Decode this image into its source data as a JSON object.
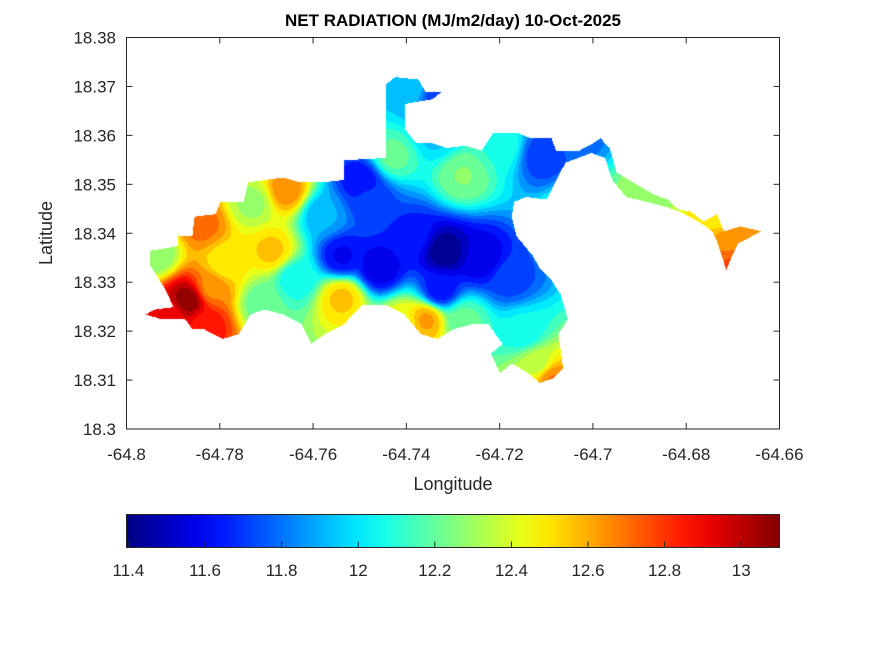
{
  "chart_data": {
    "type": "heatmap",
    "subtype": "filled-contour-map",
    "title": "NET RADIATION (MJ/m2/day) 10-Oct-2025",
    "xlabel": "Longitude",
    "ylabel": "Latitude",
    "xlim": [
      -64.8,
      -64.66
    ],
    "ylim": [
      18.3,
      18.38
    ],
    "xticks": [
      -64.8,
      -64.78,
      -64.76,
      -64.74,
      -64.72,
      -64.7,
      -64.68,
      -64.66
    ],
    "xtick_labels": [
      "-64.8",
      "-64.78",
      "-64.76",
      "-64.74",
      "-64.72",
      "-64.7",
      "-64.68",
      "-64.66"
    ],
    "yticks": [
      18.3,
      18.31,
      18.32,
      18.33,
      18.34,
      18.35,
      18.36,
      18.37,
      18.38
    ],
    "ytick_labels": [
      "18.3",
      "18.31",
      "18.32",
      "18.33",
      "18.34",
      "18.35",
      "18.36",
      "18.37",
      "18.38"
    ],
    "grid": false,
    "colormap": "jet",
    "colorbar": {
      "orientation": "horizontal",
      "placement": "bottom",
      "clim": [
        11.395,
        13.1
      ],
      "ticks": [
        11.4,
        11.6,
        11.8,
        12,
        12.2,
        12.4,
        12.6,
        12.8,
        13
      ],
      "tick_labels": [
        "11.4",
        "11.6",
        "11.8",
        "12",
        "12.2",
        "12.4",
        "12.6",
        "12.8",
        "13"
      ]
    },
    "field_background_value": 12.15,
    "field_samples": [
      {
        "lon": -64.787,
        "lat": 18.3265,
        "value": 13.08
      },
      {
        "lon": -64.791,
        "lat": 18.3235,
        "value": 12.9
      },
      {
        "lon": -64.783,
        "lat": 18.3215,
        "value": 12.85
      },
      {
        "lon": -64.782,
        "lat": 18.329,
        "value": 12.65
      },
      {
        "lon": -64.784,
        "lat": 18.342,
        "value": 12.7
      },
      {
        "lon": -64.779,
        "lat": 18.334,
        "value": 12.48
      },
      {
        "lon": -64.794,
        "lat": 18.336,
        "value": 12.25
      },
      {
        "lon": -64.773,
        "lat": 18.3465,
        "value": 12.3
      },
      {
        "lon": -64.769,
        "lat": 18.3365,
        "value": 12.55
      },
      {
        "lon": -64.766,
        "lat": 18.349,
        "value": 12.65
      },
      {
        "lon": -64.771,
        "lat": 18.326,
        "value": 12.2
      },
      {
        "lon": -64.764,
        "lat": 18.331,
        "value": 12.05
      },
      {
        "lon": -64.758,
        "lat": 18.344,
        "value": 11.9
      },
      {
        "lon": -64.754,
        "lat": 18.3355,
        "value": 11.6
      },
      {
        "lon": -64.748,
        "lat": 18.347,
        "value": 11.7
      },
      {
        "lon": -64.746,
        "lat": 18.333,
        "value": 11.55
      },
      {
        "lon": -64.739,
        "lat": 18.3395,
        "value": 11.65
      },
      {
        "lon": -64.732,
        "lat": 18.3365,
        "value": 11.42
      },
      {
        "lon": -64.724,
        "lat": 18.335,
        "value": 11.55
      },
      {
        "lon": -64.718,
        "lat": 18.331,
        "value": 11.72
      },
      {
        "lon": -64.733,
        "lat": 18.3285,
        "value": 11.62
      },
      {
        "lon": -64.75,
        "lat": 18.351,
        "value": 11.62
      },
      {
        "lon": -64.743,
        "lat": 18.356,
        "value": 12.2
      },
      {
        "lon": -64.734,
        "lat": 18.3605,
        "value": 11.95
      },
      {
        "lon": -64.728,
        "lat": 18.352,
        "value": 12.25
      },
      {
        "lon": -64.72,
        "lat": 18.358,
        "value": 12.1
      },
      {
        "lon": -64.711,
        "lat": 18.356,
        "value": 11.7
      },
      {
        "lon": -64.704,
        "lat": 18.3605,
        "value": 11.78
      },
      {
        "lon": -64.739,
        "lat": 18.37,
        "value": 11.95
      },
      {
        "lon": -64.734,
        "lat": 18.3685,
        "value": 11.72
      },
      {
        "lon": -64.754,
        "lat": 18.327,
        "value": 12.55
      },
      {
        "lon": -64.741,
        "lat": 18.322,
        "value": 12.45
      },
      {
        "lon": -64.736,
        "lat": 18.3225,
        "value": 12.62
      },
      {
        "lon": -64.728,
        "lat": 18.3225,
        "value": 12.2
      },
      {
        "lon": -64.715,
        "lat": 18.32,
        "value": 12.05
      },
      {
        "lon": -64.712,
        "lat": 18.3135,
        "value": 12.35
      },
      {
        "lon": -64.709,
        "lat": 18.3105,
        "value": 12.68
      },
      {
        "lon": -64.703,
        "lat": 18.344,
        "value": 12.3
      },
      {
        "lon": -64.688,
        "lat": 18.348,
        "value": 12.3
      },
      {
        "lon": -64.673,
        "lat": 18.3435,
        "value": 12.5
      },
      {
        "lon": -64.671,
        "lat": 18.3385,
        "value": 12.65
      },
      {
        "lon": -64.6705,
        "lat": 18.334,
        "value": 12.75
      }
    ],
    "land_mask_outline": [
      [
        -64.796,
        18.3235
      ],
      [
        -64.794,
        18.3245
      ],
      [
        -64.79,
        18.325
      ],
      [
        -64.792,
        18.329
      ],
      [
        -64.795,
        18.3335
      ],
      [
        -64.795,
        18.3365
      ],
      [
        -64.789,
        18.3375
      ],
      [
        -64.789,
        18.3395
      ],
      [
        -64.786,
        18.3395
      ],
      [
        -64.7855,
        18.3435
      ],
      [
        -64.781,
        18.344
      ],
      [
        -64.78,
        18.3465
      ],
      [
        -64.775,
        18.3465
      ],
      [
        -64.774,
        18.3505
      ],
      [
        -64.7665,
        18.3515
      ],
      [
        -64.763,
        18.3505
      ],
      [
        -64.758,
        18.3505
      ],
      [
        -64.7535,
        18.351
      ],
      [
        -64.7535,
        18.355
      ],
      [
        -64.7445,
        18.3555
      ],
      [
        -64.7445,
        18.3705
      ],
      [
        -64.7425,
        18.372
      ],
      [
        -64.7375,
        18.3715
      ],
      [
        -64.736,
        18.369
      ],
      [
        -64.7325,
        18.369
      ],
      [
        -64.7345,
        18.3675
      ],
      [
        -64.7405,
        18.3665
      ],
      [
        -64.7405,
        18.3615
      ],
      [
        -64.738,
        18.3585
      ],
      [
        -64.7345,
        18.3585
      ],
      [
        -64.7315,
        18.3575
      ],
      [
        -64.7275,
        18.358
      ],
      [
        -64.724,
        18.357
      ],
      [
        -64.7215,
        18.3605
      ],
      [
        -64.716,
        18.3605
      ],
      [
        -64.7135,
        18.3595
      ],
      [
        -64.709,
        18.3595
      ],
      [
        -64.708,
        18.357
      ],
      [
        -64.703,
        18.357
      ],
      [
        -64.7,
        18.3585
      ],
      [
        -64.6985,
        18.3595
      ],
      [
        -64.6965,
        18.3575
      ],
      [
        -64.695,
        18.3525
      ],
      [
        -64.6915,
        18.3505
      ],
      [
        -64.687,
        18.348
      ],
      [
        -64.684,
        18.347
      ],
      [
        -64.682,
        18.345
      ],
      [
        -64.679,
        18.3445
      ],
      [
        -64.6765,
        18.3425
      ],
      [
        -64.6735,
        18.344
      ],
      [
        -64.672,
        18.3405
      ],
      [
        -64.6685,
        18.3415
      ],
      [
        -64.664,
        18.3405
      ],
      [
        -64.669,
        18.338
      ],
      [
        -64.6705,
        18.335
      ],
      [
        -64.6715,
        18.3325
      ],
      [
        -64.6725,
        18.3355
      ],
      [
        -64.6735,
        18.3385
      ],
      [
        -64.6745,
        18.3405
      ],
      [
        -64.6775,
        18.3425
      ],
      [
        -64.6815,
        18.3445
      ],
      [
        -64.6845,
        18.3455
      ],
      [
        -64.6885,
        18.3465
      ],
      [
        -64.693,
        18.3475
      ],
      [
        -64.696,
        18.351
      ],
      [
        -64.6975,
        18.3555
      ],
      [
        -64.7005,
        18.3565
      ],
      [
        -64.706,
        18.3545
      ],
      [
        -64.709,
        18.349
      ],
      [
        -64.71,
        18.347
      ],
      [
        -64.7145,
        18.3475
      ],
      [
        -64.717,
        18.3465
      ],
      [
        -64.7175,
        18.3435
      ],
      [
        -64.7165,
        18.3395
      ],
      [
        -64.713,
        18.3355
      ],
      [
        -64.7115,
        18.333
      ],
      [
        -64.709,
        18.3305
      ],
      [
        -64.707,
        18.3275
      ],
      [
        -64.7055,
        18.3225
      ],
      [
        -64.7075,
        18.3195
      ],
      [
        -64.7065,
        18.3125
      ],
      [
        -64.7085,
        18.3105
      ],
      [
        -64.7115,
        18.3095
      ],
      [
        -64.714,
        18.3115
      ],
      [
        -64.7175,
        18.3135
      ],
      [
        -64.72,
        18.3115
      ],
      [
        -64.722,
        18.3155
      ],
      [
        -64.7195,
        18.3175
      ],
      [
        -64.7225,
        18.3215
      ],
      [
        -64.726,
        18.3215
      ],
      [
        -64.73,
        18.3205
      ],
      [
        -64.7335,
        18.3185
      ],
      [
        -64.737,
        18.3195
      ],
      [
        -64.7405,
        18.3235
      ],
      [
        -64.7445,
        18.3255
      ],
      [
        -64.7495,
        18.3255
      ],
      [
        -64.7535,
        18.3215
      ],
      [
        -64.7575,
        18.3195
      ],
      [
        -64.7605,
        18.3175
      ],
      [
        -64.7625,
        18.3215
      ],
      [
        -64.7665,
        18.3235
      ],
      [
        -64.7705,
        18.3245
      ],
      [
        -64.7735,
        18.3235
      ],
      [
        -64.776,
        18.3195
      ],
      [
        -64.7795,
        18.3185
      ],
      [
        -64.7835,
        18.3205
      ],
      [
        -64.786,
        18.3205
      ],
      [
        -64.7875,
        18.3225
      ],
      [
        -64.7925,
        18.3225
      ],
      [
        -64.796,
        18.3235
      ]
    ]
  }
}
